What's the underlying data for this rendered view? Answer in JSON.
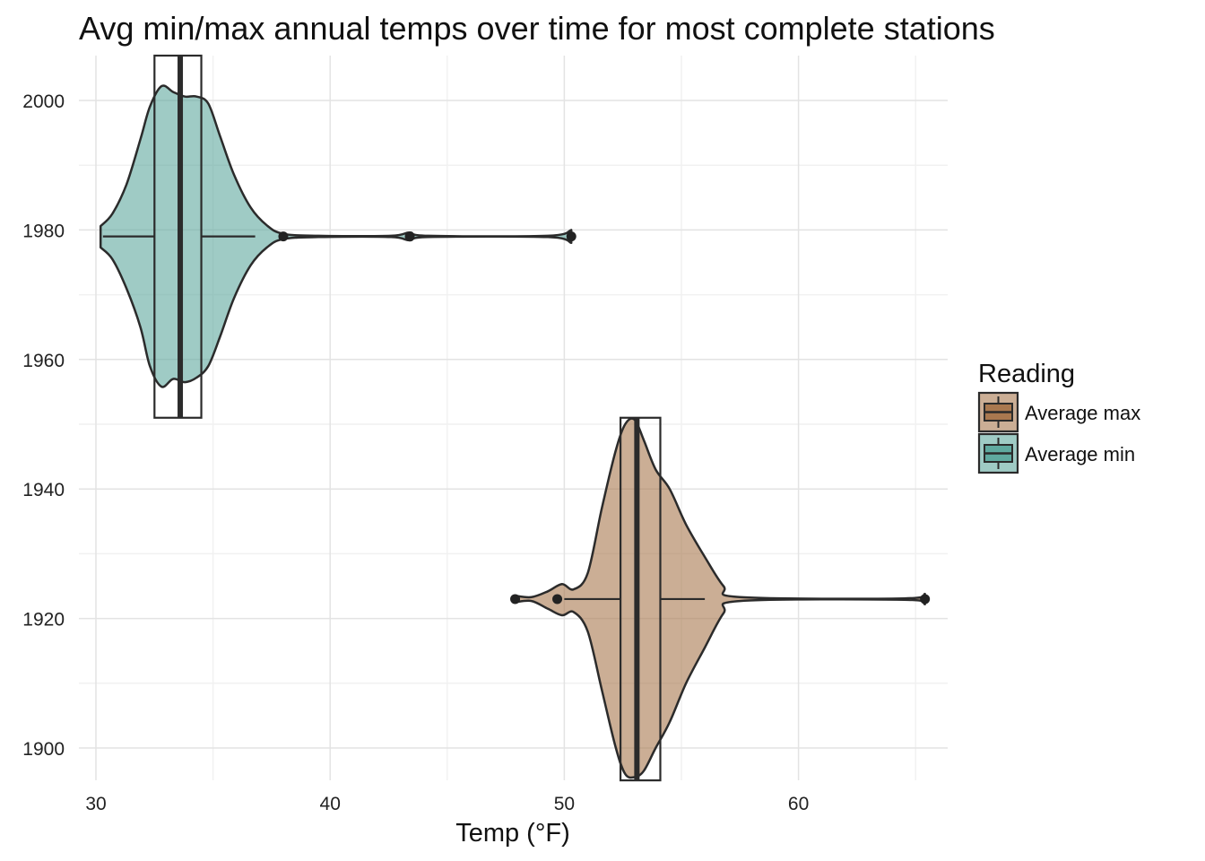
{
  "chart_data": {
    "type": "violin",
    "title": "Avg min/max annual temps over time for most complete stations",
    "xlabel": "Temp (°F)",
    "ylabel": "",
    "xlim": [
      29.3,
      65.7
    ],
    "ylim": [
      1895,
      2007
    ],
    "x_ticks": [
      30,
      40,
      50,
      60
    ],
    "y_ticks": [
      1900,
      1920,
      1940,
      1960,
      1980,
      2000
    ],
    "grid": true,
    "legend": {
      "title": "Reading",
      "position": "right",
      "entries": [
        {
          "label": "Average max",
          "color": "#a9784f"
        },
        {
          "label": "Average min",
          "color": "#5fa99f"
        }
      ]
    },
    "series": [
      {
        "name": "Average min",
        "color": "#5fa99f",
        "fill_opacity": 0.6,
        "y_center": 1979,
        "year_range": [
          1951,
          2007
        ],
        "box": {
          "q1": 32.5,
          "median": 33.6,
          "q3": 34.5,
          "whisker_low": 30.3,
          "whisker_high": 36.8
        },
        "outliers": [
          38.0,
          43.4,
          50.3
        ],
        "density_profile": [
          {
            "temp": 30.2,
            "lower": 1977.3,
            "upper": 1980.6
          },
          {
            "temp": 30.7,
            "lower": 1975.5,
            "upper": 1982.5
          },
          {
            "temp": 31.3,
            "lower": 1971.0,
            "upper": 1987.0
          },
          {
            "temp": 31.9,
            "lower": 1965.0,
            "upper": 1994.0
          },
          {
            "temp": 32.3,
            "lower": 1959.0,
            "upper": 1999.0
          },
          {
            "temp": 32.8,
            "lower": 1955.8,
            "upper": 2002.2
          },
          {
            "temp": 33.3,
            "lower": 1957.0,
            "upper": 2001.3
          },
          {
            "temp": 33.8,
            "lower": 1956.5,
            "upper": 2000.6
          },
          {
            "temp": 34.3,
            "lower": 1957.2,
            "upper": 2000.6
          },
          {
            "temp": 34.8,
            "lower": 1959.0,
            "upper": 1999.5
          },
          {
            "temp": 35.3,
            "lower": 1963.5,
            "upper": 1994.5
          },
          {
            "temp": 35.9,
            "lower": 1969.5,
            "upper": 1988.5
          },
          {
            "temp": 36.6,
            "lower": 1974.5,
            "upper": 1983.5
          },
          {
            "temp": 37.3,
            "lower": 1977.3,
            "upper": 1980.7
          },
          {
            "temp": 38.0,
            "lower": 1978.6,
            "upper": 1979.4
          },
          {
            "temp": 39.5,
            "lower": 1978.9,
            "upper": 1979.1
          },
          {
            "temp": 42.6,
            "lower": 1978.9,
            "upper": 1979.1
          },
          {
            "temp": 43.4,
            "lower": 1978.4,
            "upper": 1979.6
          },
          {
            "temp": 44.2,
            "lower": 1978.9,
            "upper": 1979.1
          },
          {
            "temp": 49.3,
            "lower": 1978.9,
            "upper": 1979.1
          },
          {
            "temp": 50.3,
            "lower": 1978.0,
            "upper": 1980.0
          }
        ]
      },
      {
        "name": "Average max",
        "color": "#a9784f",
        "fill_opacity": 0.6,
        "y_center": 1923,
        "year_range": [
          1895,
          1951
        ],
        "box": {
          "q1": 52.4,
          "median": 53.1,
          "q3": 54.1,
          "whisker_low": 50.0,
          "whisker_high": 56.0
        },
        "outliers": [
          47.9,
          49.7,
          65.4
        ],
        "density_profile": [
          {
            "temp": 47.9,
            "lower": 1922.5,
            "upper": 1923.5
          },
          {
            "temp": 48.6,
            "lower": 1922.7,
            "upper": 1923.3
          },
          {
            "temp": 49.3,
            "lower": 1921.5,
            "upper": 1924.2
          },
          {
            "temp": 49.9,
            "lower": 1920.5,
            "upper": 1925.3
          },
          {
            "temp": 50.4,
            "lower": 1921.0,
            "upper": 1924.5
          },
          {
            "temp": 51.0,
            "lower": 1918.0,
            "upper": 1927.0
          },
          {
            "temp": 51.6,
            "lower": 1909.0,
            "upper": 1937.0
          },
          {
            "temp": 52.2,
            "lower": 1900.0,
            "upper": 1946.0
          },
          {
            "temp": 52.6,
            "lower": 1896.0,
            "upper": 1950.0
          },
          {
            "temp": 53.0,
            "lower": 1895.5,
            "upper": 1950.7
          },
          {
            "temp": 53.4,
            "lower": 1896.5,
            "upper": 1947.5
          },
          {
            "temp": 53.9,
            "lower": 1900.0,
            "upper": 1943.0
          },
          {
            "temp": 54.5,
            "lower": 1904.0,
            "upper": 1940.0
          },
          {
            "temp": 55.2,
            "lower": 1910.0,
            "upper": 1934.5
          },
          {
            "temp": 56.0,
            "lower": 1915.5,
            "upper": 1929.5
          },
          {
            "temp": 56.8,
            "lower": 1920.8,
            "upper": 1925.0
          },
          {
            "temp": 57.5,
            "lower": 1922.7,
            "upper": 1923.3
          },
          {
            "temp": 64.5,
            "lower": 1922.9,
            "upper": 1923.1
          },
          {
            "temp": 65.4,
            "lower": 1922.2,
            "upper": 1923.8
          }
        ]
      }
    ]
  }
}
